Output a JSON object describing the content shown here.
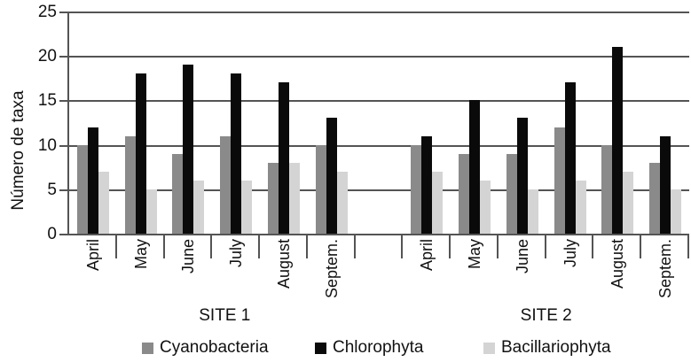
{
  "chart_data": {
    "type": "bar",
    "title": "",
    "xlabel": "",
    "ylabel": "Número de taxa",
    "ylim": [
      0,
      25
    ],
    "yticks": [
      0,
      5,
      10,
      15,
      20,
      25
    ],
    "grid": true,
    "legend_position": "bottom",
    "categories": [
      "April",
      "May",
      "June",
      "July",
      "August",
      "Septem."
    ],
    "sites": [
      {
        "label": "SITE 1",
        "series": [
          {
            "name": "Cyanobacteria",
            "values": [
              10,
              11,
              9,
              11,
              8,
              10
            ]
          },
          {
            "name": "Chlorophyta",
            "values": [
              12,
              18,
              19,
              18,
              17,
              13
            ]
          },
          {
            "name": "Bacillariophyta",
            "values": [
              7,
              5,
              6,
              6,
              8,
              7
            ]
          }
        ]
      },
      {
        "label": "SITE 2",
        "series": [
          {
            "name": "Cyanobacteria",
            "values": [
              10,
              9,
              9,
              12,
              10,
              8
            ]
          },
          {
            "name": "Chlorophyta",
            "values": [
              11,
              15,
              13,
              17,
              21,
              11
            ]
          },
          {
            "name": "Bacillariophyta",
            "values": [
              7,
              6,
              5,
              6,
              7,
              5
            ]
          }
        ]
      }
    ],
    "legend": [
      {
        "label": "Cyanobacteria",
        "color": "#8a8a8a"
      },
      {
        "label": "Chlorophyta",
        "color": "#0a0a0a"
      },
      {
        "label": "Bacillariophyta",
        "color": "#d4d4d4"
      }
    ]
  },
  "colors": {
    "axis": "#545454",
    "grid": "#545454",
    "text": "#111111",
    "background": "#ffffff"
  }
}
